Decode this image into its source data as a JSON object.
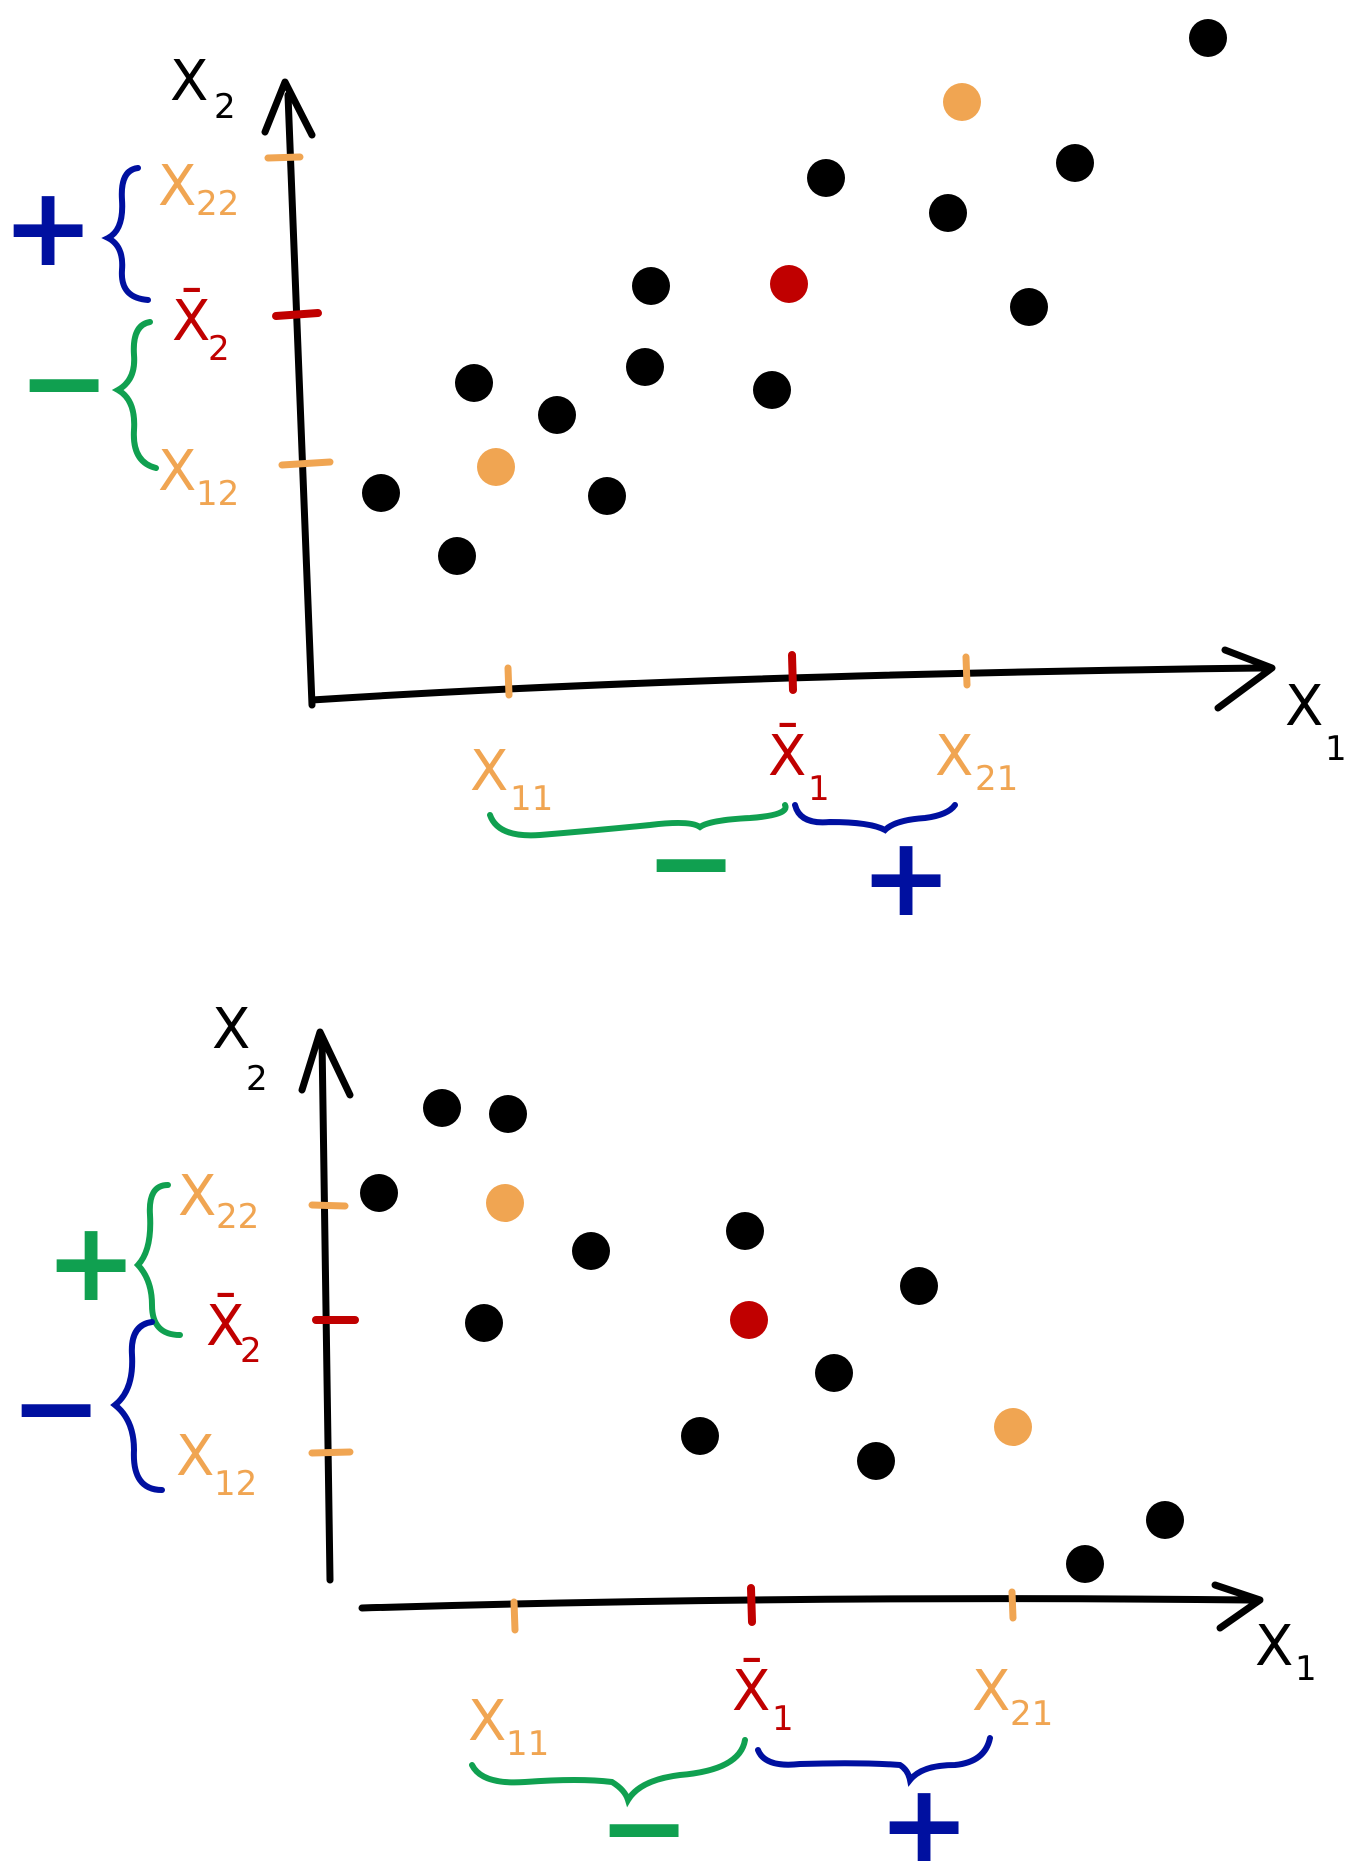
{
  "colors": {
    "ink": "#000000",
    "orange": "#f0a552",
    "red": "#c00000",
    "blue": "#0010a0",
    "green": "#10a050"
  },
  "panels": [
    {
      "axes": {
        "y_label": "X",
        "y_sub": "2",
        "x_label": "X",
        "x_sub": "1"
      },
      "x_ticks": [
        {
          "main": "X",
          "sub": "11",
          "color": "orange"
        },
        {
          "main": "X̄",
          "sub": "1",
          "color": "red"
        },
        {
          "main": "X",
          "sub": "21",
          "color": "orange"
        }
      ],
      "y_ticks": [
        {
          "main": "X",
          "sub": "22",
          "color": "orange"
        },
        {
          "main": "X̄",
          "sub": "2",
          "color": "red"
        },
        {
          "main": "X",
          "sub": "12",
          "color": "orange"
        }
      ],
      "signs": {
        "x_left": {
          "text": "−",
          "color": "green"
        },
        "x_right": {
          "text": "+",
          "color": "blue"
        },
        "y_upper": {
          "text": "+",
          "color": "blue"
        },
        "y_lower": {
          "text": "−",
          "color": "green"
        }
      }
    },
    {
      "axes": {
        "y_label": "X",
        "y_sub": "2",
        "x_label": "X",
        "x_sub": "1"
      },
      "x_ticks": [
        {
          "main": "X",
          "sub": "11",
          "color": "orange"
        },
        {
          "main": "X̄",
          "sub": "1",
          "color": "red"
        },
        {
          "main": "X",
          "sub": "21",
          "color": "orange"
        }
      ],
      "y_ticks": [
        {
          "main": "X",
          "sub": "22",
          "color": "orange"
        },
        {
          "main": "X̄",
          "sub": "2",
          "color": "red"
        },
        {
          "main": "X",
          "sub": "12",
          "color": "orange"
        }
      ],
      "signs": {
        "x_left": {
          "text": "−",
          "color": "green"
        },
        "x_right": {
          "text": "+",
          "color": "blue"
        },
        "y_upper": {
          "text": "+",
          "color": "green"
        },
        "y_lower": {
          "text": "−",
          "color": "blue"
        }
      }
    }
  ]
}
